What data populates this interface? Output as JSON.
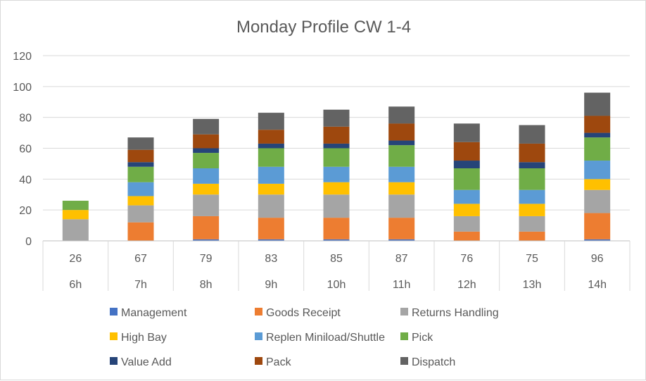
{
  "chart_data": {
    "type": "bar",
    "stacked": true,
    "title": "Monday Profile CW 1-4",
    "categories": [
      "6h",
      "7h",
      "8h",
      "9h",
      "10h",
      "11h",
      "12h",
      "13h",
      "14h"
    ],
    "totals": [
      "26",
      "67",
      "79",
      "83",
      "85",
      "87",
      "76",
      "75",
      "96"
    ],
    "ylim": [
      0,
      120
    ],
    "yticks": [
      "0",
      "20",
      "40",
      "60",
      "80",
      "100",
      "120"
    ],
    "grid": true,
    "legend_position": "bottom",
    "series": [
      {
        "name": "Management",
        "color": "#4472C4",
        "values": [
          0,
          0,
          1,
          1,
          1,
          1,
          0,
          0,
          1
        ]
      },
      {
        "name": "Goods Receipt",
        "color": "#ED7D31",
        "values": [
          0,
          12,
          15,
          14,
          14,
          14,
          6,
          6,
          17
        ]
      },
      {
        "name": "Returns Handling",
        "color": "#A5A5A5",
        "values": [
          14,
          11,
          14,
          15,
          15,
          15,
          10,
          10,
          15
        ]
      },
      {
        "name": "High Bay",
        "color": "#FFC000",
        "values": [
          6,
          6,
          7,
          7,
          8,
          8,
          8,
          8,
          7
        ]
      },
      {
        "name": "Replen Miniload/Shuttle",
        "color": "#5B9BD5",
        "values": [
          0,
          9,
          10,
          11,
          10,
          10,
          9,
          9,
          12
        ]
      },
      {
        "name": "Pick",
        "color": "#70AD47",
        "values": [
          6,
          10,
          10,
          12,
          12,
          14,
          14,
          14,
          15
        ]
      },
      {
        "name": "Value Add",
        "color": "#264478",
        "values": [
          0,
          3,
          3,
          3,
          3,
          3,
          5,
          4,
          3
        ]
      },
      {
        "name": "Pack",
        "color": "#9E480E",
        "values": [
          0,
          8,
          9,
          9,
          11,
          11,
          12,
          12,
          11
        ]
      },
      {
        "name": "Dispatch",
        "color": "#636363",
        "values": [
          0,
          8,
          10,
          11,
          11,
          11,
          12,
          12,
          15
        ]
      }
    ]
  }
}
